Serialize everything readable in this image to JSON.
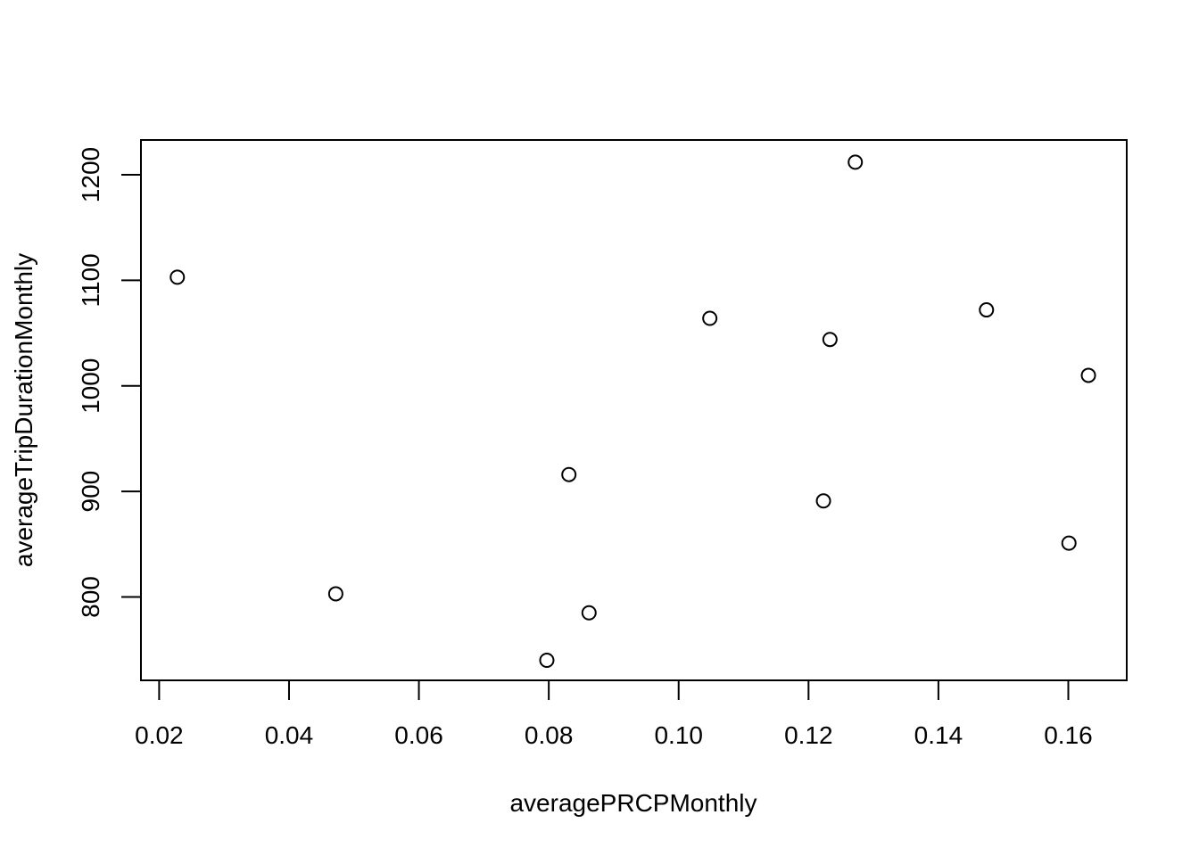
{
  "chart_data": {
    "type": "scatter",
    "title": "",
    "xlabel": "averagePRCPMonthly",
    "ylabel": "averageTripDurationMonthly",
    "xlim": [
      0.0172,
      0.169
    ],
    "ylim": [
      721,
      1233
    ],
    "x_ticks": [
      "0.02",
      "0.04",
      "0.06",
      "0.08",
      "0.10",
      "0.12",
      "0.14",
      "0.16"
    ],
    "y_ticks": [
      "800",
      "900",
      "1000",
      "1100",
      "1200"
    ],
    "grid": false,
    "legend": "none",
    "series": [
      {
        "x": [
          0.0228,
          0.0472,
          0.0797,
          0.0831,
          0.0862,
          0.1048,
          0.1223,
          0.1233,
          0.1272,
          0.1474,
          0.1601,
          0.1631
        ],
        "y": [
          1103,
          803,
          740,
          916,
          785,
          1064,
          891,
          1044,
          1212,
          1072,
          851,
          1010
        ]
      }
    ]
  }
}
